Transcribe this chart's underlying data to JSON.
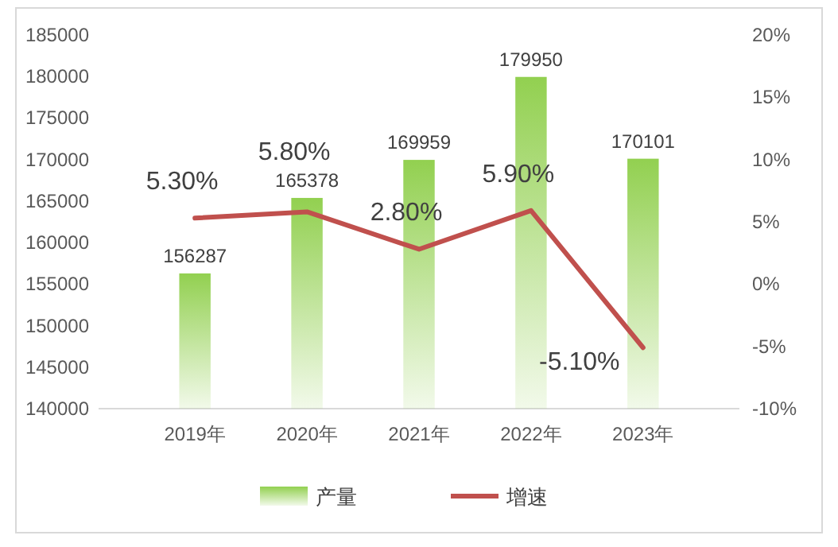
{
  "chart_data": {
    "type": "bar",
    "categories": [
      "2019年",
      "2020年",
      "2021年",
      "2022年",
      "2023年"
    ],
    "series": [
      {
        "name": "产量",
        "color": "#92d050",
        "values": [
          156287,
          165378,
          169959,
          179950,
          170101
        ],
        "value_labels": [
          "156287",
          "165378",
          "169959",
          "179950",
          "170101"
        ]
      },
      {
        "name": "增速",
        "type": "line",
        "axis": "y2",
        "color": "#c0504d",
        "values": [
          5.3,
          5.8,
          2.8,
          5.9,
          -5.1
        ],
        "value_labels": [
          "5.30%",
          "5.80%",
          "2.80%",
          "5.90%",
          "-5.10%"
        ]
      }
    ],
    "ylim": [
      140000,
      185000
    ],
    "yticks": [
      140000,
      145000,
      150000,
      155000,
      160000,
      165000,
      170000,
      175000,
      180000,
      185000
    ],
    "y2lim": [
      -10,
      20
    ],
    "y2ticks": [
      {
        "value": -10,
        "label": "-10%"
      },
      {
        "value": -5,
        "label": "-5%"
      },
      {
        "value": 0,
        "label": "0%"
      },
      {
        "value": 5,
        "label": "5%"
      },
      {
        "value": 10,
        "label": "10%"
      },
      {
        "value": 15,
        "label": "15%"
      },
      {
        "value": 20,
        "label": "20%"
      }
    ],
    "grid": false,
    "legend": "bottom",
    "marker": "none",
    "line_style": "solid"
  }
}
